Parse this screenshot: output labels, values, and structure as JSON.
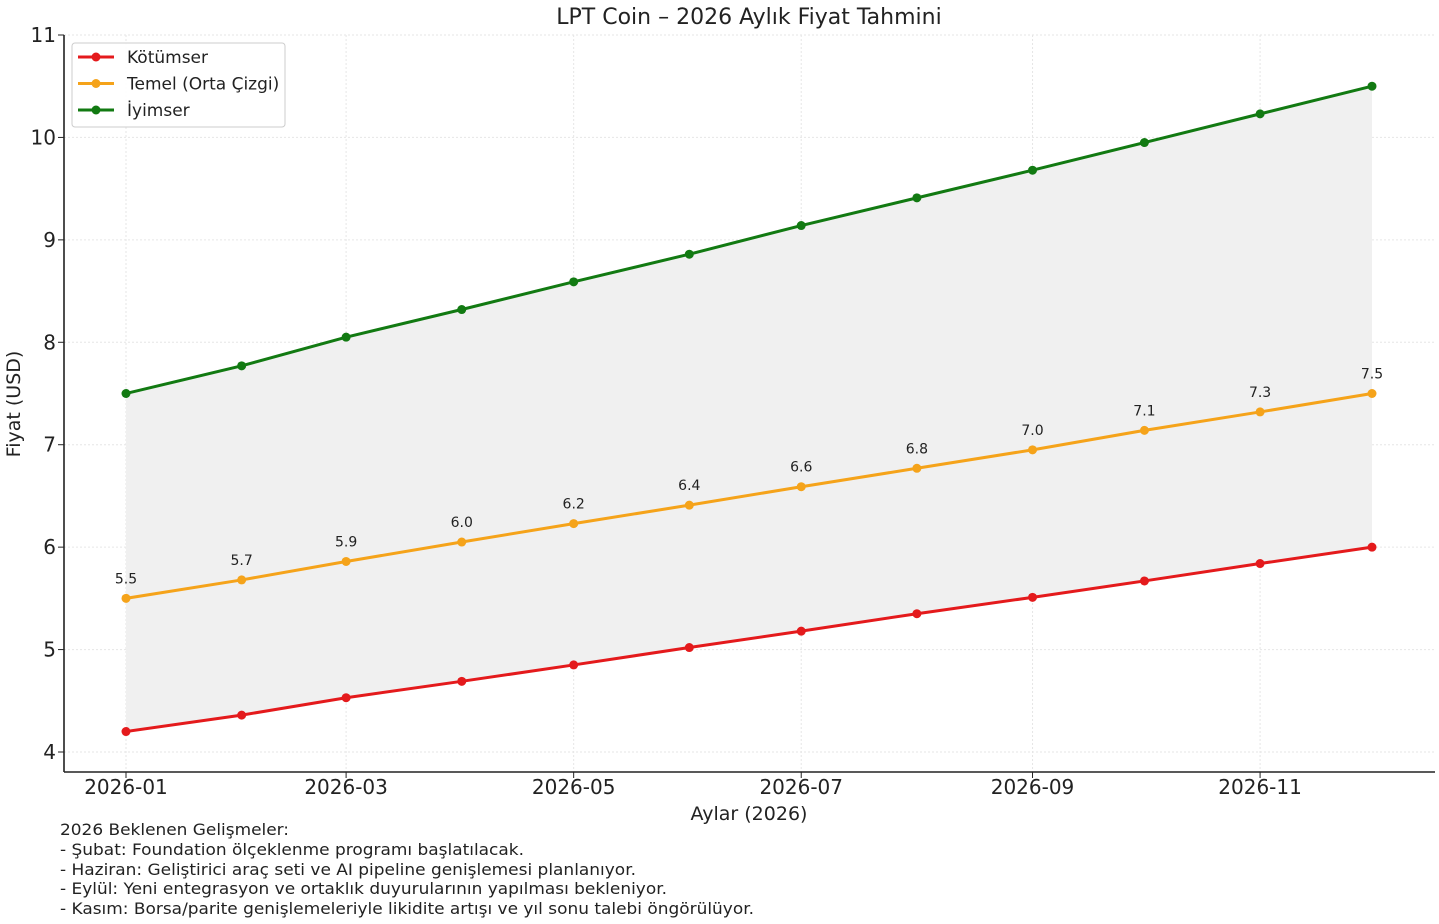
{
  "chart_data": {
    "type": "line",
    "title": "LPT Coin – 2026 Aylık Fiyat Tahmini",
    "xlabel": "Aylar (2026)",
    "ylabel": "Fiyat (USD)",
    "x": [
      "2026-01",
      "2026-02",
      "2026-03",
      "2026-04",
      "2026-05",
      "2026-06",
      "2026-07",
      "2026-08",
      "2026-09",
      "2026-10",
      "2026-11",
      "2026-12"
    ],
    "x_ticks": [
      "2026-01",
      "2026-03",
      "2026-05",
      "2026-07",
      "2026-09",
      "2026-11"
    ],
    "y_ticks": [
      4,
      5,
      6,
      7,
      8,
      9,
      10,
      11
    ],
    "ylim": [
      4,
      11
    ],
    "grid": true,
    "legend_position": "top-left",
    "fill_between": [
      "Kötümser",
      "İyimser"
    ],
    "fill_color": "#f0f0f0",
    "series": [
      {
        "name": "Kötümser",
        "color": "#e41a1c",
        "values": [
          4.2,
          4.36,
          4.53,
          4.69,
          4.85,
          5.02,
          5.18,
          5.35,
          5.51,
          5.67,
          5.84,
          6.0
        ]
      },
      {
        "name": "Temel (Orta Çizgi)",
        "color": "#f5a31a",
        "values": [
          5.5,
          5.68,
          5.86,
          6.05,
          6.23,
          6.41,
          6.59,
          6.77,
          6.95,
          7.14,
          7.32,
          7.5
        ],
        "data_labels": [
          "5.5",
          "5.7",
          "5.9",
          "6.0",
          "6.2",
          "6.4",
          "6.6",
          "6.8",
          "7.0",
          "7.1",
          "7.3",
          "7.5"
        ]
      },
      {
        "name": "İyimser",
        "color": "#127a12",
        "values": [
          7.5,
          7.77,
          8.05,
          8.32,
          8.59,
          8.86,
          9.14,
          9.41,
          9.68,
          9.95,
          10.23,
          10.5
        ]
      }
    ],
    "annotation": {
      "heading": "2026 Beklenen Gelişmeler:",
      "lines": [
        "- Şubat: Foundation ölçeklenme programı başlatılacak.",
        "- Haziran: Geliştirici araç seti ve AI pipeline genişlemesi planlanıyor.",
        "- Eylül: Yeni entegrasyon ve ortaklık duyurularının yapılması bekleniyor.",
        "- Kasım: Borsa/parite genişlemeleriyle likidite artışı ve yıl sonu talebi öngörülüyor."
      ]
    }
  }
}
